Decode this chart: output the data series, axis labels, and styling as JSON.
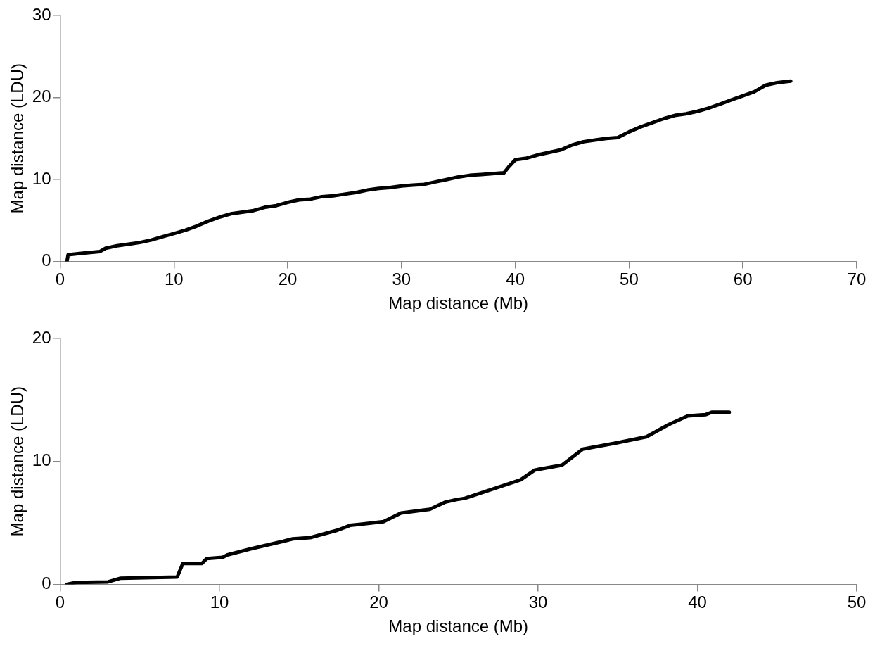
{
  "chart_data": [
    {
      "type": "line",
      "xlabel": "Map distance (Mb)",
      "ylabel": "Map distance (LDU)",
      "color": "#000000",
      "marker": "none",
      "grid": false,
      "legend": false,
      "xlim": [
        0,
        70
      ],
      "xticks": [
        0,
        10,
        20,
        30,
        40,
        50,
        60,
        70
      ],
      "ylim": [
        0,
        30
      ],
      "yticks": [
        0,
        10,
        20,
        30
      ],
      "x": [
        0.6,
        0.7,
        2,
        3.5,
        4,
        5,
        6,
        7,
        8,
        9,
        10,
        11,
        12,
        13,
        14,
        15,
        16,
        17,
        18,
        19,
        20,
        21,
        22,
        23,
        24,
        25,
        26,
        27,
        28,
        29,
        30,
        31,
        32,
        33,
        34,
        35,
        36,
        37,
        38,
        39,
        39.4,
        40,
        41,
        42,
        43,
        44,
        45,
        46,
        47,
        48,
        49,
        50,
        51,
        52,
        53,
        54,
        55,
        56,
        57,
        58,
        59,
        60,
        61,
        62,
        63,
        64.2
      ],
      "values": [
        0,
        0.8,
        1.0,
        1.2,
        1.6,
        1.9,
        2.1,
        2.3,
        2.6,
        3.0,
        3.4,
        3.8,
        4.3,
        4.9,
        5.4,
        5.8,
        6.0,
        6.2,
        6.6,
        6.8,
        7.2,
        7.5,
        7.6,
        7.9,
        8.0,
        8.2,
        8.4,
        8.7,
        8.9,
        9.0,
        9.2,
        9.3,
        9.4,
        9.7,
        10.0,
        10.3,
        10.5,
        10.6,
        10.7,
        10.8,
        11.5,
        12.4,
        12.6,
        13.0,
        13.3,
        13.6,
        14.2,
        14.6,
        14.8,
        15.0,
        15.1,
        15.8,
        16.4,
        16.9,
        17.4,
        17.8,
        18.0,
        18.3,
        18.7,
        19.2,
        19.7,
        20.2,
        20.7,
        21.5,
        21.8,
        22.0
      ]
    },
    {
      "type": "line",
      "xlabel": "Map distance (Mb)",
      "ylabel": "Map distance (LDU)",
      "color": "#000000",
      "marker": "none",
      "grid": false,
      "legend": false,
      "xlim": [
        0,
        50
      ],
      "xticks": [
        0,
        10,
        20,
        30,
        40,
        50
      ],
      "ylim": [
        0,
        20
      ],
      "yticks": [
        0,
        10,
        20
      ],
      "x": [
        0.4,
        1,
        3.0,
        3.8,
        7.35,
        7.7,
        8.9,
        9.2,
        10.2,
        10.5,
        12.0,
        13.0,
        14.0,
        14.6,
        15.7,
        17.4,
        18.2,
        20.3,
        21.4,
        23.2,
        24.2,
        24.9,
        25.4,
        26.8,
        28.9,
        29.8,
        31.5,
        32.8,
        34.9,
        36.8,
        38.2,
        39.4,
        40.5,
        40.9,
        42.0
      ],
      "values": [
        0,
        0.15,
        0.2,
        0.5,
        0.6,
        1.7,
        1.7,
        2.1,
        2.2,
        2.4,
        2.9,
        3.2,
        3.5,
        3.7,
        3.8,
        4.4,
        4.8,
        5.1,
        5.8,
        6.1,
        6.7,
        6.9,
        7.0,
        7.6,
        8.5,
        9.3,
        9.7,
        11.0,
        11.5,
        12.0,
        13.0,
        13.7,
        13.8,
        14.0,
        14.0
      ]
    }
  ]
}
